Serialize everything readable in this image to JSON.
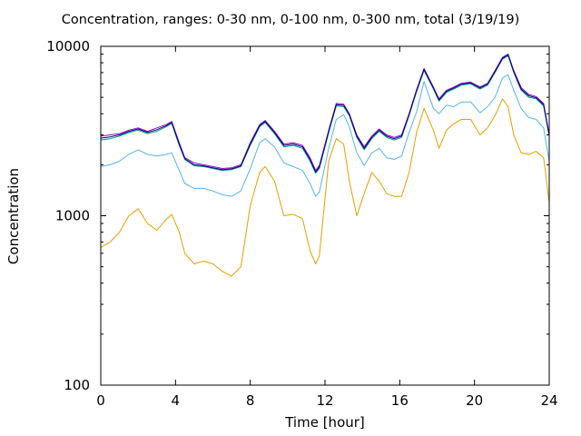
{
  "chart_data": {
    "type": "line",
    "title": "Concentration, ranges: 0-30 nm, 0-100 nm, 0-300 nm, total (3/19/19)",
    "xlabel": "Time [hour]",
    "ylabel": "Concentration",
    "xlim": [
      0,
      24
    ],
    "ylim": [
      100,
      10000
    ],
    "yscale": "log",
    "xticks": [
      0,
      4,
      8,
      12,
      16,
      20,
      24
    ],
    "yticks": [
      100,
      1000,
      10000
    ],
    "ytick_labels": [
      "100",
      "1000",
      "10000"
    ],
    "grid": false,
    "legend": "none",
    "x": [
      0,
      0.5,
      1,
      1.5,
      2,
      2.5,
      3,
      3.5,
      3.8,
      4.2,
      4.5,
      5,
      5.5,
      6,
      6.5,
      7,
      7.5,
      8,
      8.5,
      8.8,
      9.3,
      9.8,
      10.3,
      10.8,
      11.2,
      11.5,
      11.7,
      12.2,
      12.6,
      13,
      13.3,
      13.7,
      14.1,
      14.5,
      14.9,
      15.3,
      15.7,
      16.1,
      16.5,
      16.9,
      17.3,
      17.8,
      18.1,
      18.5,
      18.9,
      19.3,
      19.8,
      20.3,
      20.7,
      21.1,
      21.5,
      21.8,
      22.1,
      22.5,
      22.9,
      23.3,
      23.7,
      24
    ],
    "series": [
      {
        "color": "#e69f00",
        "values": [
          650,
          700,
          800,
          1000,
          1100,
          900,
          820,
          950,
          1020,
          800,
          600,
          520,
          540,
          520,
          470,
          440,
          500,
          1150,
          1800,
          1950,
          1600,
          1000,
          1020,
          960,
          620,
          520,
          580,
          2100,
          2850,
          2650,
          1600,
          1000,
          1350,
          1800,
          1600,
          1350,
          1300,
          1300,
          1800,
          3100,
          4300,
          3200,
          2500,
          3200,
          3500,
          3700,
          3700,
          3000,
          3300,
          3900,
          4900,
          4400,
          3000,
          2350,
          2300,
          2400,
          2200,
          1200
        ]
      },
      {
        "color": "#56b4e9",
        "values": [
          1950,
          2000,
          2100,
          2300,
          2450,
          2300,
          2250,
          2300,
          2350,
          1850,
          1550,
          1450,
          1450,
          1400,
          1330,
          1300,
          1400,
          1900,
          2700,
          2850,
          2550,
          2050,
          1950,
          1850,
          1550,
          1300,
          1380,
          2500,
          3700,
          3950,
          3350,
          2350,
          1980,
          2350,
          2500,
          2200,
          2150,
          2250,
          3100,
          4100,
          6200,
          4300,
          4000,
          4500,
          4400,
          4700,
          4700,
          4050,
          4400,
          5000,
          6500,
          6800,
          5500,
          4300,
          3800,
          3700,
          3300,
          2100
        ]
      },
      {
        "color": "#009e73",
        "values": [
          2800,
          2850,
          2950,
          3100,
          3200,
          3050,
          3150,
          3350,
          3500,
          2600,
          2150,
          1970,
          1950,
          1900,
          1850,
          1870,
          1950,
          2600,
          3350,
          3550,
          3050,
          2550,
          2600,
          2500,
          2100,
          1780,
          1900,
          3100,
          4450,
          4400,
          3900,
          2900,
          2450,
          2850,
          3150,
          2900,
          2800,
          2900,
          3900,
          5400,
          7200,
          5600,
          4750,
          5350,
          5600,
          5900,
          6000,
          5600,
          5900,
          7000,
          8400,
          8800,
          7000,
          5500,
          5000,
          4900,
          4450,
          2950
        ]
      },
      {
        "color": "#9400d3",
        "values": [
          2950,
          3000,
          3050,
          3200,
          3300,
          3150,
          3300,
          3450,
          3600,
          2700,
          2200,
          2050,
          2000,
          1950,
          1900,
          1920,
          2000,
          2700,
          3450,
          3650,
          3150,
          2650,
          2700,
          2600,
          2200,
          1850,
          1980,
          3200,
          4600,
          4550,
          4000,
          3000,
          2550,
          2950,
          3250,
          3000,
          2900,
          3000,
          4000,
          5550,
          7400,
          5750,
          4900,
          5500,
          5750,
          6050,
          6150,
          5750,
          6050,
          7200,
          8600,
          9000,
          7200,
          5700,
          5200,
          5050,
          4600,
          3000
        ]
      },
      {
        "color": "#000080",
        "values": [
          2870,
          2920,
          3000,
          3150,
          3250,
          3100,
          3220,
          3400,
          3550,
          2650,
          2170,
          2000,
          1970,
          1920,
          1870,
          1890,
          1970,
          2650,
          3400,
          3600,
          3100,
          2600,
          2650,
          2550,
          2150,
          1810,
          1940,
          3150,
          4520,
          4480,
          3950,
          2950,
          2500,
          2900,
          3200,
          2950,
          2850,
          2950,
          3950,
          5480,
          7300,
          5680,
          4820,
          5430,
          5680,
          5980,
          6080,
          5680,
          5980,
          7100,
          8500,
          8900,
          7100,
          5600,
          5100,
          4970,
          4520,
          2970
        ]
      }
    ]
  }
}
